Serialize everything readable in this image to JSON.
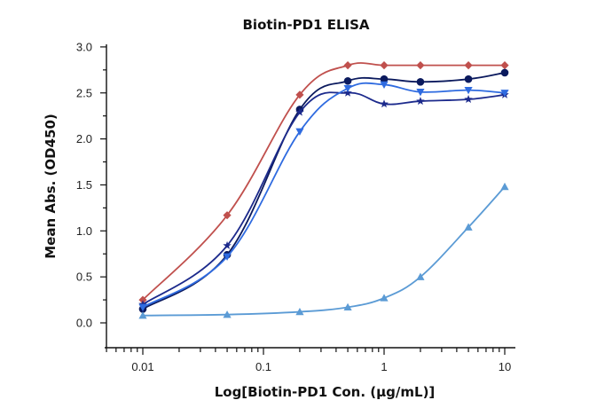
{
  "chart_data": {
    "type": "line",
    "title": "Biotin-PD1 ELISA",
    "xlabel": "Log[Biotin-PD1 Con. (μg/mL)]",
    "ylabel": "Mean Abs. (OD450)",
    "xscale": "log",
    "xlim": [
      0.005,
      12
    ],
    "ylim": [
      0,
      3.0
    ],
    "xticks": [
      0.01,
      0.1,
      1,
      10
    ],
    "xtick_labels": [
      "0.01",
      "0.1",
      "1",
      "10"
    ],
    "yticks": [
      0.0,
      0.5,
      1.0,
      1.5,
      2.0,
      2.5,
      3.0
    ],
    "ytick_labels": [
      "0.0",
      "0.5",
      "1.0",
      "1.5",
      "2.0",
      "2.5",
      "3.0"
    ],
    "grid": false,
    "legend": "none",
    "x": [
      0.01,
      0.05,
      0.2,
      0.5,
      1,
      2,
      5,
      10
    ],
    "series": [
      {
        "name": "series-1",
        "marker": "diamond",
        "color": "#c0504d",
        "values": [
          0.25,
          1.17,
          2.48,
          2.8,
          2.8,
          2.8,
          2.8,
          2.8
        ]
      },
      {
        "name": "series-2",
        "marker": "circle",
        "color": "#0b1a5e",
        "values": [
          0.15,
          0.74,
          2.32,
          2.63,
          2.65,
          2.62,
          2.65,
          2.72
        ]
      },
      {
        "name": "series-3",
        "marker": "star",
        "color": "#1c2a8c",
        "values": [
          0.2,
          0.84,
          2.29,
          2.5,
          2.38,
          2.41,
          2.43,
          2.48
        ]
      },
      {
        "name": "series-4",
        "marker": "triangle-down",
        "color": "#2f6be0",
        "values": [
          0.17,
          0.72,
          2.08,
          2.55,
          2.59,
          2.51,
          2.53,
          2.5
        ]
      },
      {
        "name": "series-5",
        "marker": "triangle-up",
        "color": "#5b9bd5",
        "values": [
          0.08,
          0.09,
          0.12,
          0.17,
          0.27,
          0.5,
          1.04,
          1.48
        ]
      }
    ]
  }
}
